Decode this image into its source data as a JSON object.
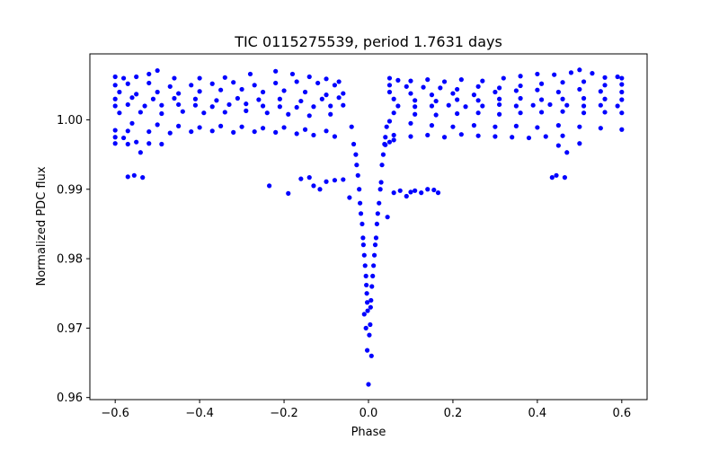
{
  "chart_data": {
    "type": "scatter",
    "title": "TIC 0115275539, period 1.7631 days",
    "xlabel": "Phase",
    "ylabel": "Normalized PDC flux",
    "xlim": [
      -0.66,
      0.66
    ],
    "ylim": [
      0.9597,
      1.0095
    ],
    "grid": false,
    "legend": "none",
    "xticks": [
      -0.6,
      -0.4,
      -0.2,
      0.0,
      0.2,
      0.4,
      0.6
    ],
    "xtick_labels": [
      "−0.6",
      "−0.4",
      "−0.2",
      "0.0",
      "0.2",
      "0.4",
      "0.6"
    ],
    "yticks": [
      0.96,
      0.97,
      0.98,
      0.99,
      1.0
    ],
    "ytick_labels": [
      "0.96",
      "0.97",
      "0.98",
      "0.99",
      "1.00"
    ],
    "marker_color": "#0000ff",
    "series": [
      {
        "name": "PDC flux",
        "points": [
          [
            -0.6,
            1.0062
          ],
          [
            -0.58,
            1.006
          ],
          [
            -0.55,
            1.0062
          ],
          [
            -0.52,
            1.0066
          ],
          [
            -0.5,
            1.0071
          ],
          [
            -0.46,
            1.006
          ],
          [
            -0.4,
            1.006
          ],
          [
            -0.34,
            1.0061
          ],
          [
            -0.28,
            1.0066
          ],
          [
            -0.22,
            1.007
          ],
          [
            -0.18,
            1.0066
          ],
          [
            -0.14,
            1.0062
          ],
          [
            -0.1,
            1.0059
          ],
          [
            -0.07,
            1.0055
          ],
          [
            -0.6,
            1.005
          ],
          [
            -0.57,
            1.0052
          ],
          [
            -0.52,
            1.0053
          ],
          [
            -0.47,
            1.0048
          ],
          [
            -0.42,
            1.005
          ],
          [
            -0.37,
            1.0052
          ],
          [
            -0.32,
            1.0054
          ],
          [
            -0.27,
            1.005
          ],
          [
            -0.22,
            1.0053
          ],
          [
            -0.17,
            1.0055
          ],
          [
            -0.12,
            1.0053
          ],
          [
            -0.08,
            1.005
          ],
          [
            -0.59,
            1.004
          ],
          [
            -0.55,
            1.0037
          ],
          [
            -0.5,
            1.004
          ],
          [
            -0.45,
            1.0038
          ],
          [
            -0.4,
            1.0041
          ],
          [
            -0.35,
            1.0043
          ],
          [
            -0.3,
            1.0044
          ],
          [
            -0.25,
            1.004
          ],
          [
            -0.2,
            1.0042
          ],
          [
            -0.15,
            1.004
          ],
          [
            -0.1,
            1.0036
          ],
          [
            -0.06,
            1.0038
          ],
          [
            -0.6,
            1.003
          ],
          [
            -0.56,
            1.0032
          ],
          [
            -0.51,
            1.003
          ],
          [
            -0.46,
            1.0031
          ],
          [
            -0.41,
            1.003
          ],
          [
            -0.36,
            1.0028
          ],
          [
            -0.31,
            1.0031
          ],
          [
            -0.26,
            1.0029
          ],
          [
            -0.21,
            1.003
          ],
          [
            -0.16,
            1.0027
          ],
          [
            -0.11,
            1.003
          ],
          [
            -0.07,
            1.0032
          ],
          [
            -0.6,
            1.002
          ],
          [
            -0.57,
            1.0022
          ],
          [
            -0.53,
            1.002
          ],
          [
            -0.49,
            1.0021
          ],
          [
            -0.45,
            1.0022
          ],
          [
            -0.41,
            1.0021
          ],
          [
            -0.37,
            1.0019
          ],
          [
            -0.33,
            1.0022
          ],
          [
            -0.29,
            1.0023
          ],
          [
            -0.25,
            1.002
          ],
          [
            -0.21,
            1.0019
          ],
          [
            -0.17,
            1.0018
          ],
          [
            -0.13,
            1.0019
          ],
          [
            -0.09,
            1.002
          ],
          [
            -0.06,
            1.0021
          ],
          [
            -0.59,
            1.001
          ],
          [
            -0.54,
            1.0011
          ],
          [
            -0.49,
            1.0009
          ],
          [
            -0.44,
            1.0012
          ],
          [
            -0.39,
            1.001
          ],
          [
            -0.34,
            1.0011
          ],
          [
            -0.29,
            1.0013
          ],
          [
            -0.24,
            1.001
          ],
          [
            -0.19,
            1.0008
          ],
          [
            -0.14,
            1.0006
          ],
          [
            -0.09,
            1.0008
          ],
          [
            -0.56,
            0.9995
          ],
          [
            -0.5,
            0.9993
          ],
          [
            -0.45,
            0.9991
          ],
          [
            -0.4,
            0.9989
          ],
          [
            -0.35,
            0.9991
          ],
          [
            -0.3,
            0.999
          ],
          [
            -0.25,
            0.9988
          ],
          [
            -0.2,
            0.9989
          ],
          [
            -0.15,
            0.9986
          ],
          [
            -0.1,
            0.9984
          ],
          [
            -0.6,
            0.9985
          ],
          [
            -0.57,
            0.9984
          ],
          [
            -0.52,
            0.9983
          ],
          [
            -0.47,
            0.9981
          ],
          [
            -0.42,
            0.9983
          ],
          [
            -0.37,
            0.9984
          ],
          [
            -0.32,
            0.9982
          ],
          [
            -0.27,
            0.9983
          ],
          [
            -0.22,
            0.9982
          ],
          [
            -0.17,
            0.998
          ],
          [
            -0.13,
            0.9978
          ],
          [
            -0.08,
            0.9976
          ],
          [
            -0.6,
            0.9975
          ],
          [
            -0.58,
            0.9974
          ],
          [
            -0.55,
            0.9968
          ],
          [
            -0.52,
            0.9966
          ],
          [
            -0.49,
            0.9965
          ],
          [
            -0.6,
            0.9966
          ],
          [
            -0.57,
            0.9965
          ],
          [
            -0.54,
            0.9953
          ],
          [
            -0.57,
            0.9918
          ],
          [
            -0.555,
            0.992
          ],
          [
            -0.535,
            0.9917
          ],
          [
            -0.235,
            0.9905
          ],
          [
            -0.19,
            0.9894
          ],
          [
            -0.16,
            0.9915
          ],
          [
            -0.14,
            0.9917
          ],
          [
            -0.13,
            0.9905
          ],
          [
            -0.115,
            0.99
          ],
          [
            -0.1,
            0.9911
          ],
          [
            -0.08,
            0.9913
          ],
          [
            -0.06,
            0.9914
          ],
          [
            -0.045,
            0.9888
          ],
          [
            -0.04,
            0.999
          ],
          [
            -0.035,
            0.9965
          ],
          [
            -0.03,
            0.995
          ],
          [
            -0.028,
            0.9935
          ],
          [
            -0.025,
            0.992
          ],
          [
            -0.022,
            0.99
          ],
          [
            -0.02,
            0.988
          ],
          [
            -0.018,
            0.9865
          ],
          [
            -0.015,
            0.985
          ],
          [
            -0.013,
            0.983
          ],
          [
            -0.012,
            0.982
          ],
          [
            -0.01,
            0.9805
          ],
          [
            -0.008,
            0.979
          ],
          [
            -0.006,
            0.9775
          ],
          [
            -0.005,
            0.9762
          ],
          [
            -0.004,
            0.975
          ],
          [
            -0.003,
            0.9737
          ],
          [
            -0.002,
            0.9725
          ],
          [
            -0.01,
            0.972
          ],
          [
            -0.006,
            0.97
          ],
          [
            -0.003,
            0.9668
          ],
          [
            0.0,
            0.9619
          ],
          [
            0.002,
            0.969
          ],
          [
            0.004,
            0.9705
          ],
          [
            0.005,
            0.973
          ],
          [
            0.006,
            0.974
          ],
          [
            0.007,
            0.966
          ],
          [
            0.008,
            0.976
          ],
          [
            0.01,
            0.9775
          ],
          [
            0.012,
            0.979
          ],
          [
            0.014,
            0.9805
          ],
          [
            0.016,
            0.982
          ],
          [
            0.018,
            0.983
          ],
          [
            0.02,
            0.985
          ],
          [
            0.022,
            0.9865
          ],
          [
            0.025,
            0.988
          ],
          [
            0.028,
            0.99
          ],
          [
            0.03,
            0.991
          ],
          [
            0.032,
            0.9935
          ],
          [
            0.035,
            0.995
          ],
          [
            0.038,
            0.9965
          ],
          [
            0.04,
            0.9975
          ],
          [
            0.043,
            0.999
          ],
          [
            0.045,
            0.986
          ],
          [
            0.06,
            0.9895
          ],
          [
            0.075,
            0.9898
          ],
          [
            0.09,
            0.989
          ],
          [
            0.1,
            0.9896
          ],
          [
            0.11,
            0.9898
          ],
          [
            0.125,
            0.9895
          ],
          [
            0.14,
            0.99
          ],
          [
            0.155,
            0.9899
          ],
          [
            0.165,
            0.9895
          ],
          [
            0.05,
            1.006
          ],
          [
            0.07,
            1.0057
          ],
          [
            0.1,
            1.0056
          ],
          [
            0.14,
            1.0058
          ],
          [
            0.18,
            1.0055
          ],
          [
            0.22,
            1.0058
          ],
          [
            0.27,
            1.0056
          ],
          [
            0.32,
            1.006
          ],
          [
            0.36,
            1.0063
          ],
          [
            0.4,
            1.0066
          ],
          [
            0.44,
            1.0065
          ],
          [
            0.48,
            1.0068
          ],
          [
            0.5,
            1.0072
          ],
          [
            0.53,
            1.0067
          ],
          [
            0.56,
            1.0061
          ],
          [
            0.59,
            1.0062
          ],
          [
            0.6,
            1.006
          ],
          [
            0.05,
            1.005
          ],
          [
            0.09,
            1.0048
          ],
          [
            0.13,
            1.0047
          ],
          [
            0.17,
            1.0046
          ],
          [
            0.21,
            1.0044
          ],
          [
            0.26,
            1.0048
          ],
          [
            0.31,
            1.0046
          ],
          [
            0.36,
            1.0049
          ],
          [
            0.41,
            1.0052
          ],
          [
            0.46,
            1.0054
          ],
          [
            0.51,
            1.0055
          ],
          [
            0.56,
            1.005
          ],
          [
            0.6,
            1.0051
          ],
          [
            0.05,
            1.004
          ],
          [
            0.1,
            1.0038
          ],
          [
            0.15,
            1.0036
          ],
          [
            0.2,
            1.0038
          ],
          [
            0.25,
            1.0036
          ],
          [
            0.3,
            1.004
          ],
          [
            0.35,
            1.0042
          ],
          [
            0.4,
            1.0043
          ],
          [
            0.45,
            1.004
          ],
          [
            0.5,
            1.0044
          ],
          [
            0.55,
            1.0041
          ],
          [
            0.6,
            1.004
          ],
          [
            0.06,
            1.003
          ],
          [
            0.11,
            1.0028
          ],
          [
            0.16,
            1.0027
          ],
          [
            0.21,
            1.0029
          ],
          [
            0.26,
            1.0028
          ],
          [
            0.31,
            1.003
          ],
          [
            0.36,
            1.0031
          ],
          [
            0.41,
            1.0029
          ],
          [
            0.46,
            1.003
          ],
          [
            0.51,
            1.0031
          ],
          [
            0.56,
            1.003
          ],
          [
            0.6,
            1.0029
          ],
          [
            0.07,
            1.002
          ],
          [
            0.11,
            1.0019
          ],
          [
            0.15,
            1.002
          ],
          [
            0.19,
            1.0021
          ],
          [
            0.23,
            1.0019
          ],
          [
            0.27,
            1.002
          ],
          [
            0.31,
            1.0022
          ],
          [
            0.35,
            1.002
          ],
          [
            0.39,
            1.0021
          ],
          [
            0.43,
            1.0022
          ],
          [
            0.47,
            1.0021
          ],
          [
            0.51,
            1.002
          ],
          [
            0.55,
            1.0021
          ],
          [
            0.59,
            1.002
          ],
          [
            0.06,
            1.001
          ],
          [
            0.11,
            1.0008
          ],
          [
            0.16,
            1.0007
          ],
          [
            0.21,
            1.0009
          ],
          [
            0.26,
            1.001
          ],
          [
            0.31,
            1.0008
          ],
          [
            0.36,
            1.001
          ],
          [
            0.41,
            1.0011
          ],
          [
            0.46,
            1.0012
          ],
          [
            0.51,
            1.001
          ],
          [
            0.56,
            1.0011
          ],
          [
            0.6,
            1.001
          ],
          [
            0.05,
            0.9998
          ],
          [
            0.1,
            0.9995
          ],
          [
            0.15,
            0.9992
          ],
          [
            0.2,
            0.999
          ],
          [
            0.25,
            0.9992
          ],
          [
            0.3,
            0.999
          ],
          [
            0.35,
            0.9991
          ],
          [
            0.4,
            0.9989
          ],
          [
            0.45,
            0.9992
          ],
          [
            0.5,
            0.999
          ],
          [
            0.55,
            0.9988
          ],
          [
            0.6,
            0.9986
          ],
          [
            0.06,
            0.9978
          ],
          [
            0.1,
            0.9976
          ],
          [
            0.14,
            0.9978
          ],
          [
            0.18,
            0.9975
          ],
          [
            0.22,
            0.9979
          ],
          [
            0.26,
            0.9977
          ],
          [
            0.3,
            0.9976
          ],
          [
            0.34,
            0.9975
          ],
          [
            0.38,
            0.9974
          ],
          [
            0.42,
            0.9976
          ],
          [
            0.46,
            0.9977
          ],
          [
            0.5,
            0.9966
          ],
          [
            0.45,
            0.9963
          ],
          [
            0.47,
            0.9953
          ],
          [
            0.04,
            0.9964
          ],
          [
            0.05,
            0.9968
          ],
          [
            0.06,
            0.9971
          ],
          [
            0.435,
            0.9917
          ],
          [
            0.445,
            0.992
          ],
          [
            0.465,
            0.9917
          ]
        ]
      }
    ]
  }
}
